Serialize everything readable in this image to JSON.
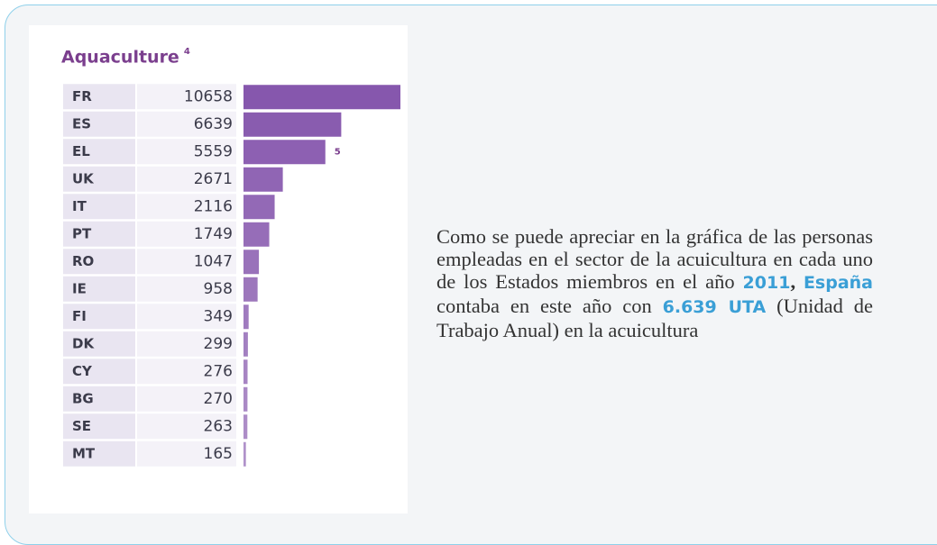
{
  "chart_data": {
    "type": "bar",
    "orientation": "horizontal",
    "title": "Aquaculture",
    "title_superscript": "4",
    "categories": [
      "FR",
      "ES",
      "EL",
      "UK",
      "IT",
      "PT",
      "RO",
      "IE",
      "FI",
      "DK",
      "CY",
      "BG",
      "SE",
      "MT"
    ],
    "values": [
      10658,
      6639,
      5559,
      2671,
      2116,
      1749,
      1047,
      958,
      349,
      299,
      276,
      270,
      263,
      165
    ],
    "color": "#8657ad",
    "annotations": [
      {
        "text": "5",
        "category": "EL"
      }
    ]
  },
  "text": {
    "paragraph": [
      "Como se puede apreciar en la gráfica de las personas empleadas en el sector de la acuicultura en cada uno de los Estados miembros en el año ",
      "2011",
      ", ",
      "España",
      " contaba en este año con ",
      "6.639 UTA",
      " (Unidad de Trabajo Anual) en la acuicultura"
    ]
  }
}
